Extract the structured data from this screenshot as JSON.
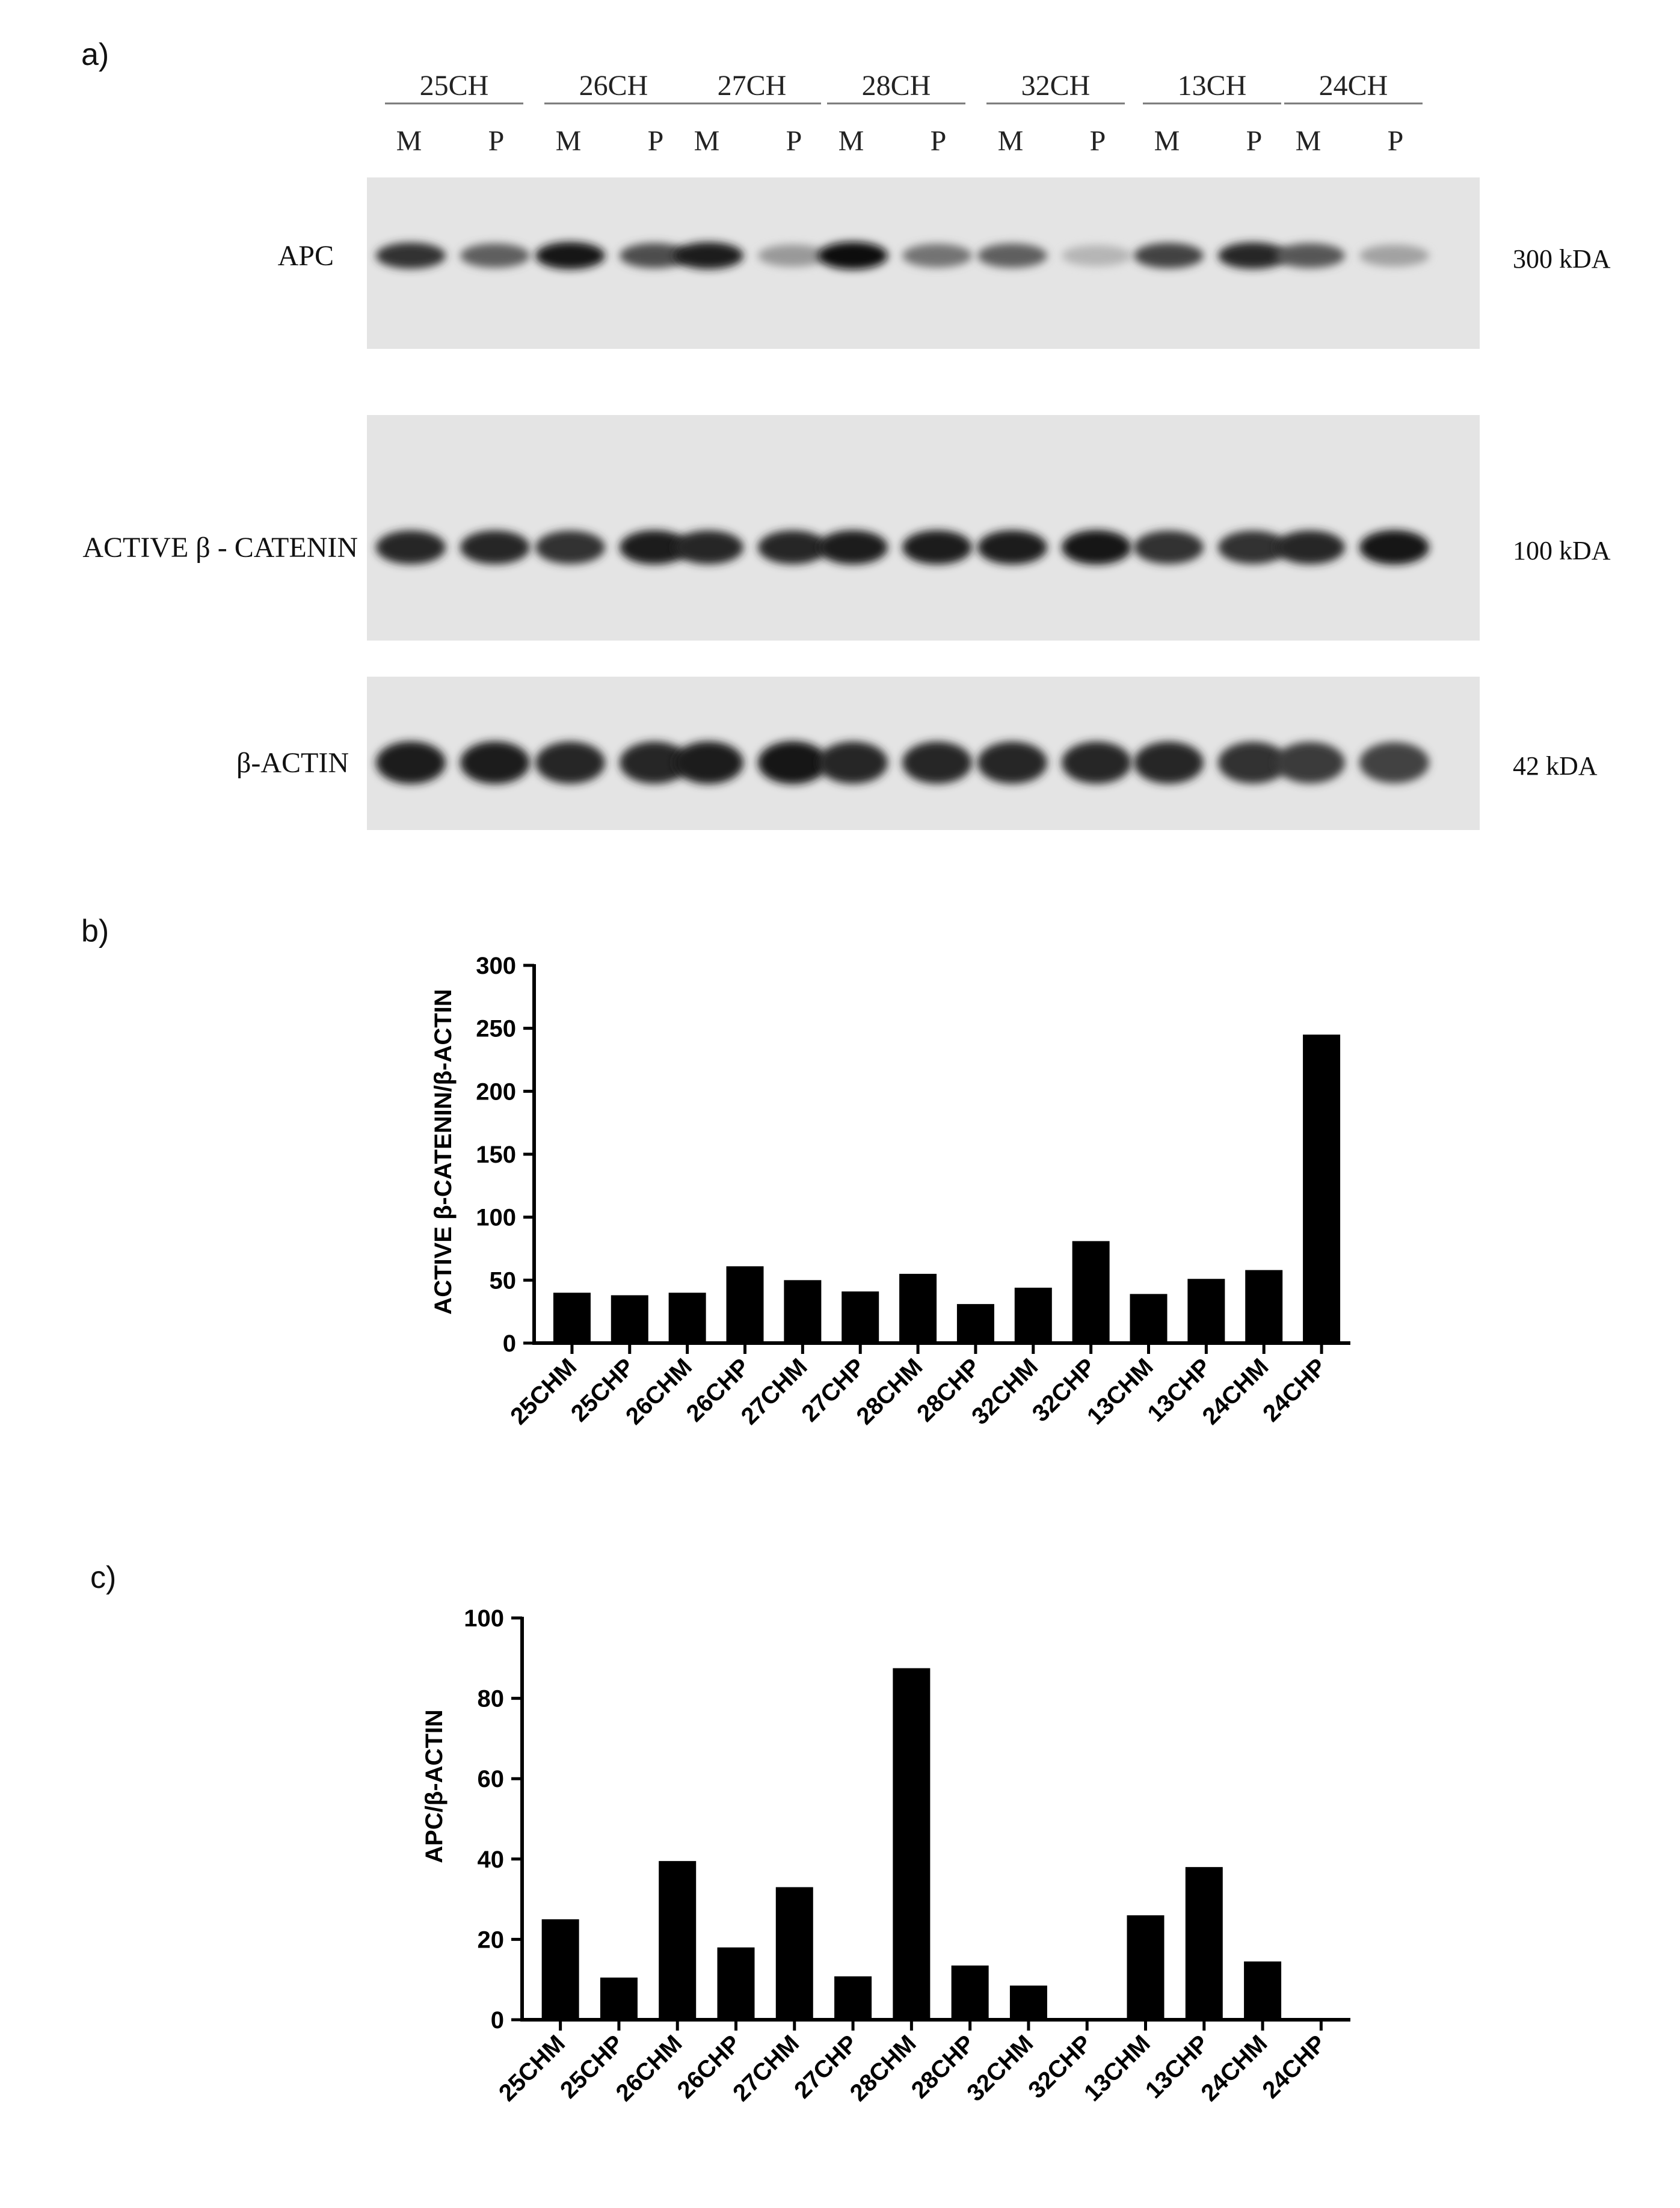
{
  "panels": {
    "a": {
      "label": "a)",
      "groups": [
        "25CH",
        "26CH",
        "27CH",
        "28CH",
        "32CH",
        "13CH",
        "24CH"
      ],
      "lane_m": "M",
      "lane_p": "P",
      "blots": [
        {
          "name": "APC",
          "size": "300 kDA",
          "bands": [
            0.8,
            0.55,
            0.95,
            0.65,
            0.9,
            0.25,
            1.0,
            0.45,
            0.55,
            0.1,
            0.7,
            0.85,
            0.6,
            0.2
          ]
        },
        {
          "name": "ACTIVE β - CATENIN",
          "size": "100 kDA",
          "bands": [
            0.85,
            0.85,
            0.8,
            0.9,
            0.85,
            0.85,
            0.9,
            0.9,
            0.9,
            0.95,
            0.8,
            0.8,
            0.85,
            0.95
          ]
        },
        {
          "name": "β-ACTIN",
          "size": "42 kDA",
          "bands": [
            0.9,
            0.9,
            0.85,
            0.85,
            0.9,
            0.95,
            0.85,
            0.85,
            0.85,
            0.85,
            0.85,
            0.8,
            0.75,
            0.7
          ]
        }
      ]
    },
    "b": {
      "label": "b)"
    },
    "c": {
      "label": "c)"
    }
  },
  "chart_data": [
    {
      "type": "bar",
      "panel": "b",
      "categories": [
        "25CHM",
        "25CHP",
        "26CHM",
        "26CHP",
        "27CHM",
        "27CHP",
        "28CHM",
        "28CHP",
        "32CHM",
        "32CHP",
        "13CHM",
        "13CHP",
        "24CHM",
        "24CHP"
      ],
      "values": [
        40,
        38,
        40,
        61,
        50,
        41,
        55,
        31,
        44,
        81,
        39,
        51,
        58,
        245
      ],
      "ylabel": "ACTIVE β-CATENIN/β-ACTIN",
      "xlabel": "",
      "ylim": [
        0,
        300
      ],
      "yticks": [
        0,
        50,
        100,
        150,
        200,
        250,
        300
      ],
      "grid": false,
      "bar_color": "#000000"
    },
    {
      "type": "bar",
      "panel": "c",
      "categories": [
        "25CHM",
        "25CHP",
        "26CHM",
        "26CHP",
        "27CHM",
        "27CHP",
        "28CHM",
        "28CHP",
        "32CHM",
        "32CHP",
        "13CHM",
        "13CHP",
        "24CHM",
        "24CHP"
      ],
      "values": [
        25,
        10.5,
        39.5,
        18,
        33,
        10.8,
        87.5,
        13.5,
        8.5,
        0,
        26,
        38,
        14.5,
        0
      ],
      "ylabel": "APC/β-ACTIN",
      "xlabel": "",
      "ylim": [
        0,
        100
      ],
      "yticks": [
        0,
        20,
        40,
        60,
        80,
        100
      ],
      "grid": false,
      "bar_color": "#000000"
    }
  ]
}
